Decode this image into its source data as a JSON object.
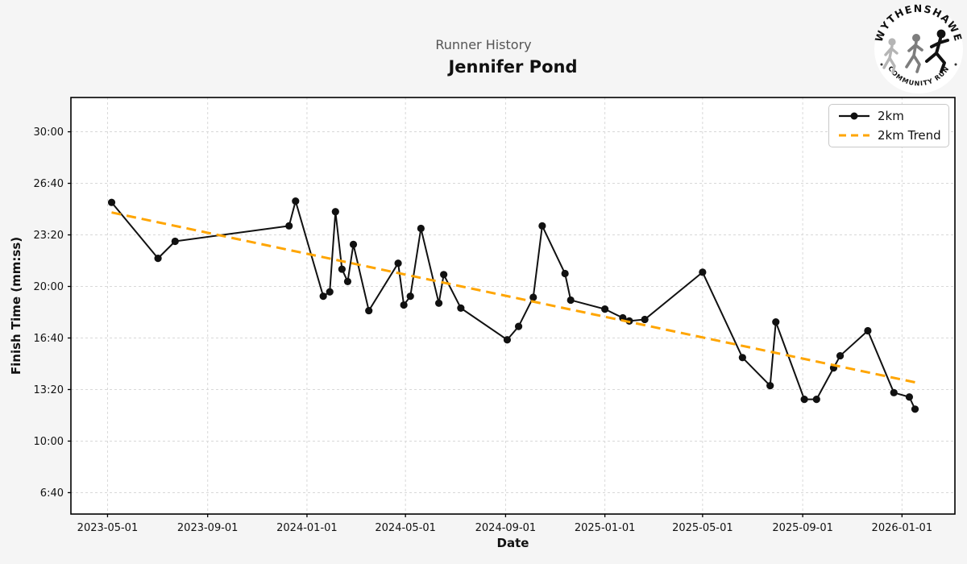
{
  "header": {
    "suptitle": "Runner History",
    "title": "Jennifer Pond"
  },
  "logo": {
    "top_text": "WYTHENSHAWE",
    "bottom_text": "COMMUNITY RUN"
  },
  "legend": {
    "items": [
      {
        "label": "2km"
      },
      {
        "label": "2km Trend"
      }
    ]
  },
  "colors": {
    "figure_bg": "#f5f5f5",
    "plot_bg": "#ffffff",
    "grid": "#d8d8d8",
    "spine": "#000000",
    "series": "#111111",
    "trend": "#FFA500",
    "subtitle": "#555555",
    "tick_text": "#111111"
  },
  "chart_data": {
    "type": "line",
    "title": "Jennifer Pond",
    "suptitle": "Runner History",
    "xlabel": "Date",
    "ylabel": "Finish Time (mm:ss)",
    "grid": true,
    "legend_position": "upper right",
    "x_range": [
      "2023-03-17",
      "2026-03-07"
    ],
    "y_range_seconds": [
      317,
      1933
    ],
    "y_ticks": [
      {
        "label": "30:00",
        "seconds": 1800
      },
      {
        "label": "26:40",
        "seconds": 1600
      },
      {
        "label": "23:20",
        "seconds": 1400
      },
      {
        "label": "20:00",
        "seconds": 1200
      },
      {
        "label": "16:40",
        "seconds": 1000
      },
      {
        "label": "13:20",
        "seconds": 800
      },
      {
        "label": "10:00",
        "seconds": 600
      },
      {
        "label": "6:40",
        "seconds": 400
      }
    ],
    "x_ticks": [
      "2023-05-01",
      "2023-09-01",
      "2024-01-01",
      "2024-05-01",
      "2024-09-01",
      "2025-01-01",
      "2025-05-01",
      "2025-09-01",
      "2026-01-01"
    ],
    "series": [
      {
        "name": "2km",
        "style": "solid-markers",
        "color": "#111111",
        "points": [
          {
            "date": "2023-05-06",
            "time": "25:26"
          },
          {
            "date": "2023-07-02",
            "time": "21:49"
          },
          {
            "date": "2023-07-23",
            "time": "22:55"
          },
          {
            "date": "2023-12-10",
            "time": "23:55"
          },
          {
            "date": "2023-12-18",
            "time": "25:31"
          },
          {
            "date": "2024-01-21",
            "time": "19:22"
          },
          {
            "date": "2024-01-29",
            "time": "19:39"
          },
          {
            "date": "2024-02-05",
            "time": "24:50"
          },
          {
            "date": "2024-02-13",
            "time": "21:07"
          },
          {
            "date": "2024-02-20",
            "time": "20:19"
          },
          {
            "date": "2024-02-27",
            "time": "22:43"
          },
          {
            "date": "2024-03-17",
            "time": "18:26"
          },
          {
            "date": "2024-04-22",
            "time": "21:30"
          },
          {
            "date": "2024-04-29",
            "time": "18:48"
          },
          {
            "date": "2024-05-07",
            "time": "19:22"
          },
          {
            "date": "2024-05-20",
            "time": "23:45"
          },
          {
            "date": "2024-06-11",
            "time": "18:55"
          },
          {
            "date": "2024-06-17",
            "time": "20:46"
          },
          {
            "date": "2024-07-08",
            "time": "18:36"
          },
          {
            "date": "2024-09-03",
            "time": "16:33"
          },
          {
            "date": "2024-09-17",
            "time": "17:25"
          },
          {
            "date": "2024-10-05",
            "time": "19:18"
          },
          {
            "date": "2024-10-16",
            "time": "23:55"
          },
          {
            "date": "2024-11-13",
            "time": "20:50"
          },
          {
            "date": "2024-11-20",
            "time": "19:07"
          },
          {
            "date": "2025-01-01",
            "time": "18:32"
          },
          {
            "date": "2025-01-23",
            "time": "17:58"
          },
          {
            "date": "2025-01-31",
            "time": "17:46"
          },
          {
            "date": "2025-02-19",
            "time": "17:52"
          },
          {
            "date": "2025-05-01",
            "time": "20:55"
          },
          {
            "date": "2025-06-19",
            "time": "15:24"
          },
          {
            "date": "2025-07-23",
            "time": "13:35"
          },
          {
            "date": "2025-07-30",
            "time": "17:42"
          },
          {
            "date": "2025-09-03",
            "time": "12:42"
          },
          {
            "date": "2025-09-18",
            "time": "12:42"
          },
          {
            "date": "2025-10-09",
            "time": "14:44"
          },
          {
            "date": "2025-10-17",
            "time": "15:31"
          },
          {
            "date": "2025-11-20",
            "time": "17:08"
          },
          {
            "date": "2025-12-22",
            "time": "13:08"
          },
          {
            "date": "2026-01-10",
            "time": "12:51"
          },
          {
            "date": "2026-01-17",
            "time": "12:04"
          }
        ]
      },
      {
        "name": "2km Trend",
        "style": "dashed",
        "color": "#FFA500",
        "points": [
          {
            "date": "2023-05-06",
            "time": "24:47"
          },
          {
            "date": "2026-01-17",
            "time": "13:48"
          }
        ]
      }
    ]
  }
}
